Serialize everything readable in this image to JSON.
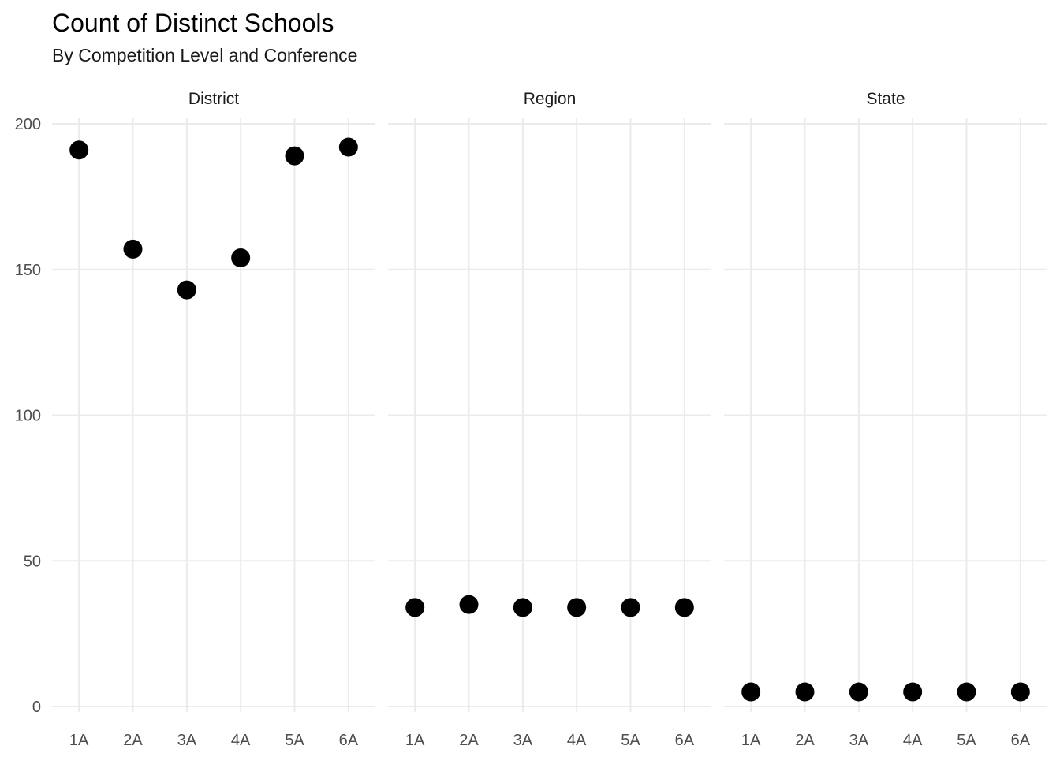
{
  "chart_data": {
    "type": "scatter",
    "title": "Count of Distinct Schools",
    "subtitle": "By Competition Level and Conference",
    "xlabel": "",
    "ylabel": "",
    "categories": [
      "1A",
      "2A",
      "3A",
      "4A",
      "5A",
      "6A"
    ],
    "ylim": [
      0,
      200
    ],
    "yticks": [
      0,
      50,
      100,
      150,
      200
    ],
    "grid": true,
    "point_color": "#000000",
    "facets": [
      {
        "name": "District",
        "values": [
          191,
          157,
          143,
          154,
          189,
          192
        ]
      },
      {
        "name": "Region",
        "values": [
          34,
          35,
          34,
          34,
          34,
          34
        ]
      },
      {
        "name": "State",
        "values": [
          5,
          5,
          5,
          5,
          5,
          5
        ]
      }
    ]
  }
}
